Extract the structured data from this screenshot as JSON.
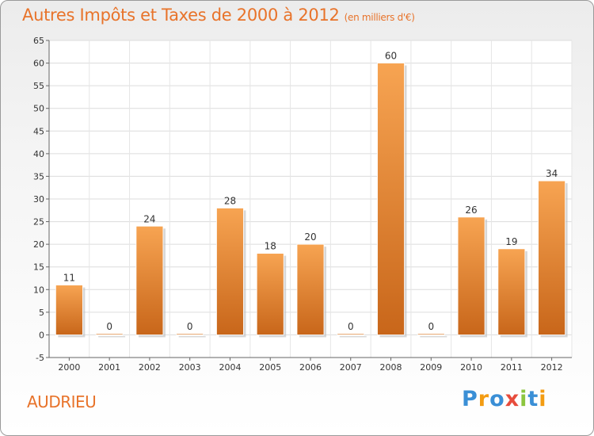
{
  "header": {
    "title": "Autres Impôts et Taxes de 2000 à 2012",
    "unit": "(en milliers d'€)"
  },
  "footer": {
    "commune": "AUDRIEU",
    "logo": [
      "P",
      "r",
      "o",
      "x",
      "i",
      "t",
      "i"
    ],
    "logo_colors": [
      "#3a8fd6",
      "#f39c12",
      "#3a8fd6",
      "#e74c3c",
      "#8cc63f",
      "#3a8fd6",
      "#f39c12"
    ]
  },
  "chart_data": {
    "type": "bar",
    "categories": [
      "2000",
      "2001",
      "2002",
      "2003",
      "2004",
      "2005",
      "2006",
      "2007",
      "2008",
      "2009",
      "2010",
      "2011",
      "2012"
    ],
    "values": [
      11,
      0,
      24,
      0,
      28,
      18,
      20,
      0,
      60,
      0,
      26,
      19,
      34
    ],
    "data_labels": [
      "11",
      "0",
      "24",
      "0",
      "28",
      "18",
      "20",
      "0",
      "60",
      "0",
      "26",
      "19",
      "34"
    ],
    "yticks": [
      "-5",
      "0",
      "5",
      "10",
      "15",
      "20",
      "25",
      "30",
      "35",
      "40",
      "45",
      "50",
      "55",
      "60",
      "65"
    ],
    "ylim": [
      -5,
      65
    ],
    "grid": true,
    "bar_color": "#f39c44",
    "bar_color_dark": "#c8661a"
  }
}
